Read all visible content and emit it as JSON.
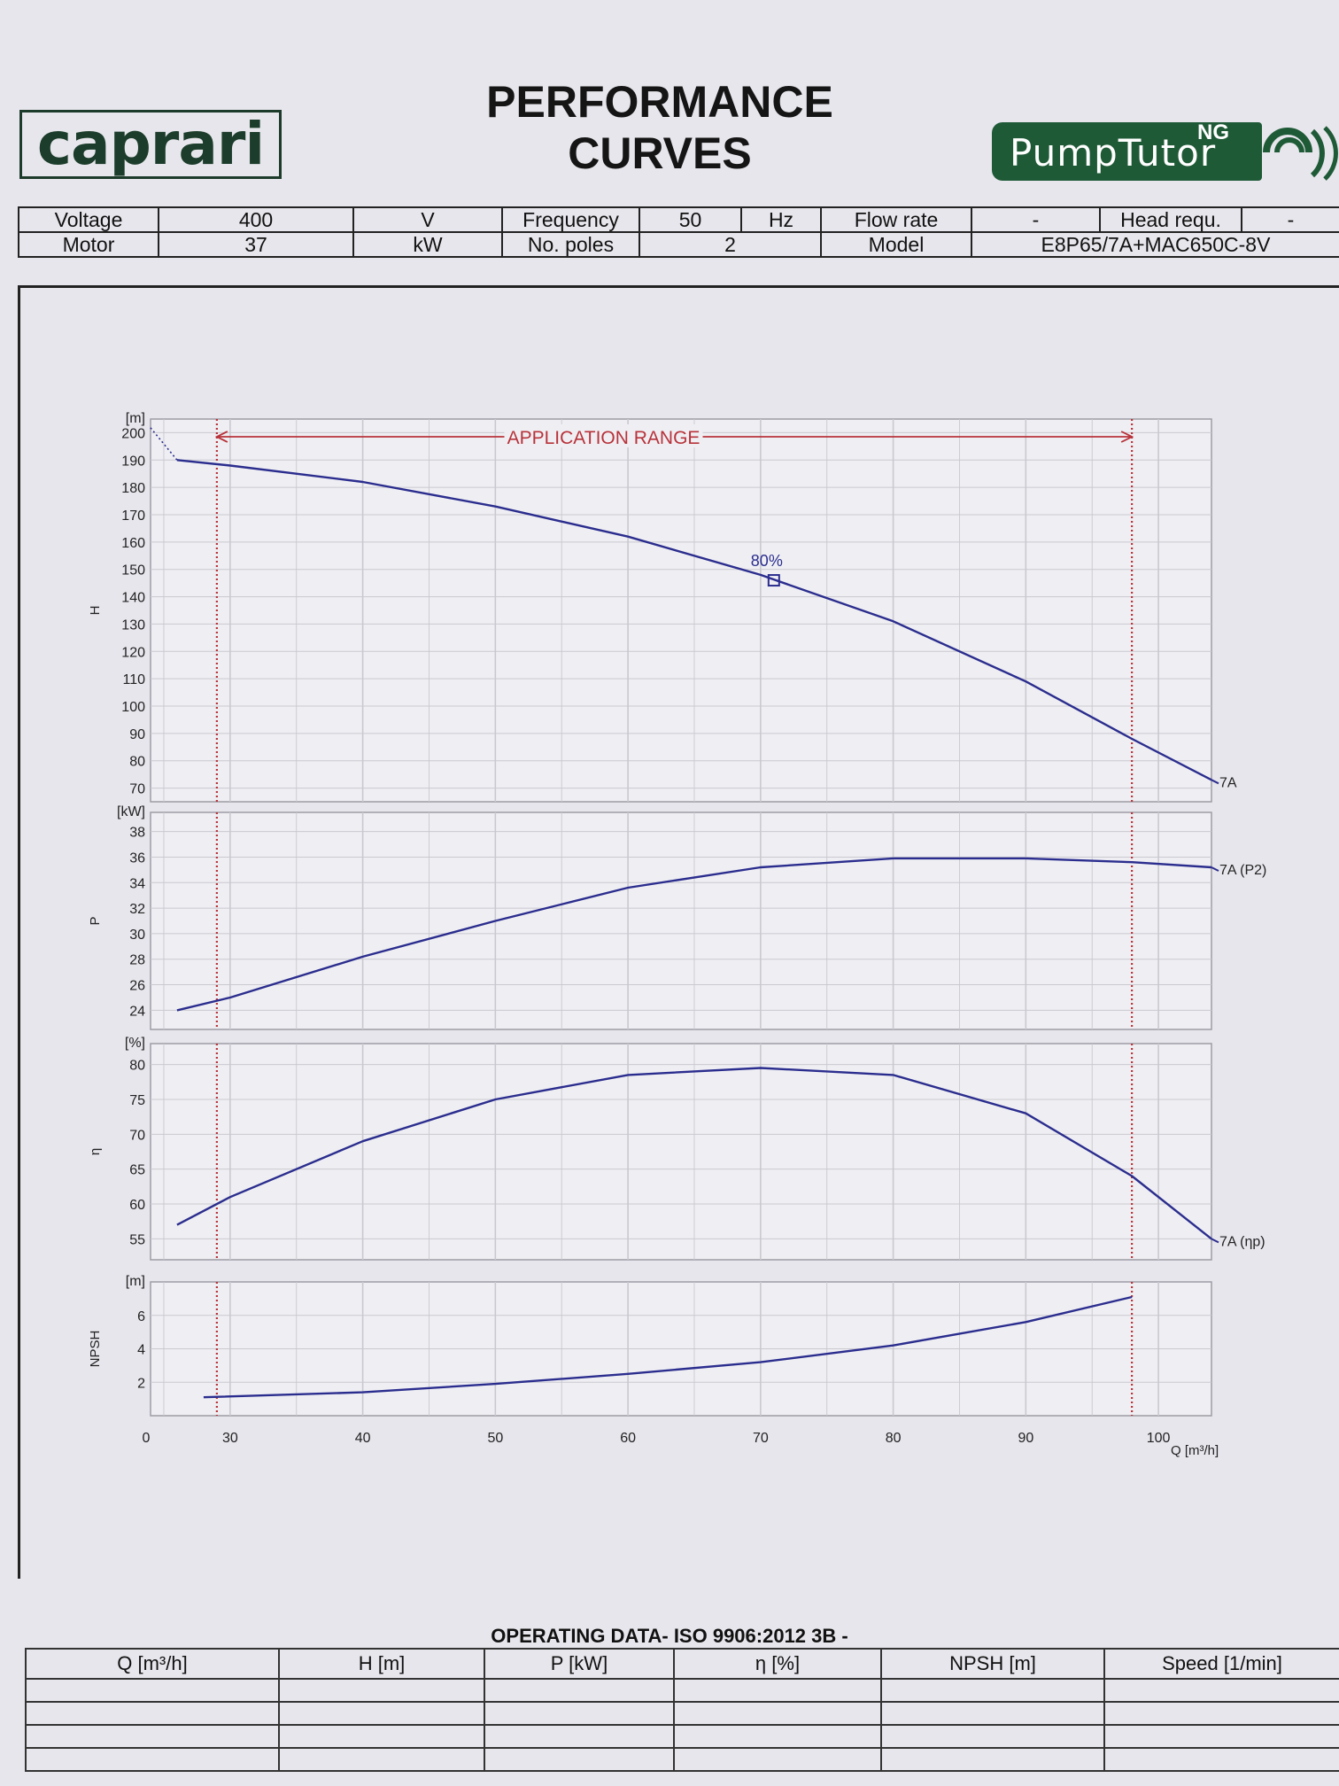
{
  "header": {
    "logo_text": "caprari",
    "title": "PERFORMANCE\nCURVES",
    "brand_name": "PumpTutor",
    "brand_sup": "NG"
  },
  "spec": {
    "voltage_label": "Voltage",
    "voltage_value": "400",
    "voltage_unit": "V",
    "motor_label": "Motor",
    "motor_value": "37",
    "motor_unit": "kW",
    "frequency_label": "Frequency",
    "frequency_value": "50",
    "frequency_unit": "Hz",
    "poles_label": "No. poles",
    "poles_value": "2",
    "flow_label": "Flow rate",
    "flow_value": "-",
    "head_label": "Head requ.",
    "head_value": "-",
    "model_label": "Model",
    "model_value": "E8P65/7A+MAC650C-8V"
  },
  "colors": {
    "curve": "#2b2d8e",
    "range": "#b8323a",
    "grid": "#c9c8cf",
    "panel": "#efeff3"
  },
  "chart_data": [
    {
      "type": "line",
      "title": "",
      "ylabel": "H",
      "yunit": "[m]",
      "ylim": [
        65,
        205
      ],
      "yticks": [
        70,
        80,
        90,
        100,
        110,
        120,
        130,
        140,
        150,
        160,
        170,
        180,
        190,
        200
      ],
      "xlim": [
        0,
        104
      ],
      "series": [
        {
          "name": "7A",
          "x": [
            26,
            30,
            40,
            50,
            60,
            70,
            80,
            90,
            98,
            104
          ],
          "y": [
            190,
            188,
            182,
            173,
            162,
            148,
            131,
            109,
            88,
            73
          ]
        }
      ],
      "extrapolation": {
        "x": [
          0,
          26
        ],
        "y": [
          203,
          190
        ]
      },
      "marker": {
        "x": 71,
        "y": 146,
        "label": "80%"
      },
      "annotation": "APPLICATION RANGE"
    },
    {
      "type": "line",
      "ylabel": "P",
      "yunit": "[kW]",
      "ylim": [
        22.5,
        39.5
      ],
      "yticks": [
        24,
        26,
        28,
        30,
        32,
        34,
        36,
        38
      ],
      "series": [
        {
          "name": "7A (P2)",
          "x": [
            26,
            30,
            40,
            50,
            60,
            70,
            80,
            90,
            98,
            104
          ],
          "y": [
            24,
            25,
            28.2,
            31,
            33.6,
            35.2,
            35.9,
            35.9,
            35.6,
            35.2
          ]
        }
      ]
    },
    {
      "type": "line",
      "ylabel": "η",
      "yunit": "[%]",
      "ylim": [
        52,
        83
      ],
      "yticks": [
        55,
        60,
        65,
        70,
        75,
        80
      ],
      "series": [
        {
          "name": "7A (ηp)",
          "x": [
            26,
            30,
            40,
            50,
            60,
            70,
            80,
            90,
            98,
            104
          ],
          "y": [
            57,
            61,
            69,
            75,
            78.5,
            79.5,
            78.5,
            73,
            64,
            55
          ]
        }
      ]
    },
    {
      "type": "line",
      "ylabel": "NPSH",
      "yunit": "[m]",
      "ylim": [
        0,
        8
      ],
      "yticks": [
        2,
        4,
        6
      ],
      "series": [
        {
          "name": "",
          "x": [
            28,
            40,
            50,
            60,
            70,
            80,
            90,
            98
          ],
          "y": [
            1.1,
            1.4,
            1.9,
            2.5,
            3.2,
            4.2,
            5.6,
            7.1
          ]
        }
      ]
    }
  ],
  "x_axis": {
    "label": "Q [m³/h]",
    "ticks": [
      "0",
      "30",
      "40",
      "50",
      "60",
      "70",
      "80",
      "90",
      "100"
    ],
    "range_min": 29,
    "range_max": 98
  },
  "operating": {
    "title": "OPERATING DATA- ISO 9906:2012 3B -",
    "columns": [
      "Q [m³/h]",
      "H [m]",
      "P [kW]",
      "η [%]",
      "NPSH [m]",
      "Speed [1/min]"
    ]
  }
}
